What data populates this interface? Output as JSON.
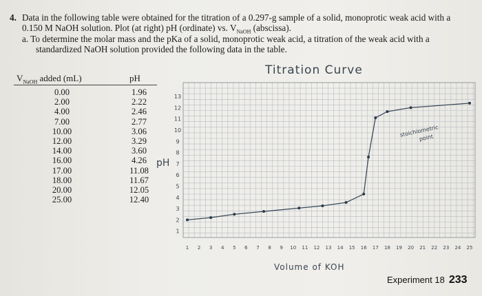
{
  "problem": {
    "number": "4.",
    "line1": "Data in the following table were obtained for the titration of a 0.297-g sample of a solid, monoprotic weak acid with a",
    "line2": "0.150 M NaOH solution. Plot (at right) pH (ordinate) vs. V",
    "line2_sub": "NaOH",
    "line2_end": " (abscissa).",
    "line3": "a. To determine the molar mass and the pKa of a solid, monoprotic weak acid, a titration of the weak acid with a",
    "line4": "standardized NaOH solution provided the following data in the table."
  },
  "table": {
    "header_v": "V",
    "header_v_sub": "NaOH",
    "header_v_rest": " added (mL)",
    "header_ph": "pH",
    "volumes": [
      "0.00",
      "2.00",
      "4.00",
      "7.00",
      "10.00",
      "12.00",
      "14.00",
      "16.00",
      "17.00",
      "18.00",
      "20.00",
      "25.00"
    ],
    "ph": [
      "1.96",
      "2.22",
      "2.46",
      "2.77",
      "3.06",
      "3.29",
      "3.60",
      "4.26",
      "11.08",
      "11.67",
      "12.05",
      "12.40"
    ]
  },
  "handwriting": {
    "title": "Titration Curve",
    "y_label": "pH",
    "x_label": "Volume of KOH",
    "annotation_1": "stoichiometric",
    "annotation_2": "point"
  },
  "chart_data": {
    "type": "line",
    "title": "Titration Curve",
    "xlabel": "Volume of KOH",
    "ylabel": "pH",
    "y_ticks": [
      "1",
      "2",
      "3",
      "4",
      "5",
      "6",
      "7",
      "8",
      "9",
      "10",
      "11",
      "12",
      "13"
    ],
    "x_ticks": [
      "1",
      "2",
      "3",
      "4",
      "5",
      "6",
      "7",
      "8",
      "9",
      "10",
      "11",
      "12",
      "13",
      "14",
      "15",
      "16",
      "17",
      "18",
      "19",
      "20",
      "21",
      "22",
      "23",
      "24",
      "25"
    ],
    "points": [
      {
        "x": 1,
        "y": 2.0
      },
      {
        "x": 3,
        "y": 2.2
      },
      {
        "x": 5,
        "y": 2.5
      },
      {
        "x": 7.5,
        "y": 2.75
      },
      {
        "x": 10.5,
        "y": 3.05
      },
      {
        "x": 12.5,
        "y": 3.25
      },
      {
        "x": 14.5,
        "y": 3.55
      },
      {
        "x": 16,
        "y": 4.3
      },
      {
        "x": 16.4,
        "y": 7.6
      },
      {
        "x": 17,
        "y": 11.1
      },
      {
        "x": 18,
        "y": 11.65
      },
      {
        "x": 20,
        "y": 12.0
      },
      {
        "x": 25,
        "y": 12.4
      }
    ]
  },
  "footer": {
    "label": "Experiment 18",
    "page": "233"
  }
}
